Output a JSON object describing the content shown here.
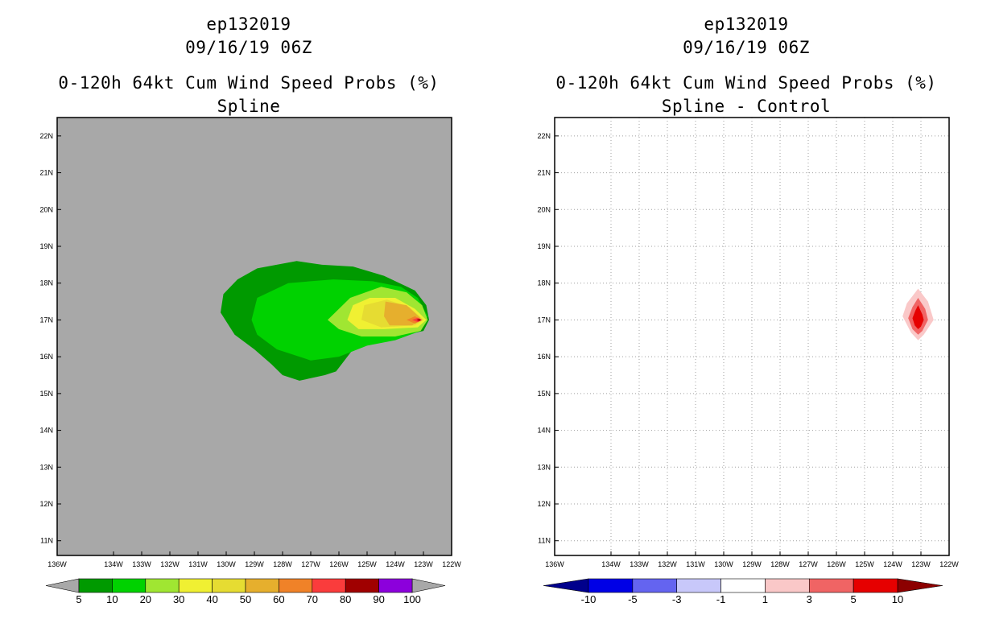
{
  "chart_data": [
    {
      "type": "heatmap",
      "storm_id": "ep132019",
      "datetime": "09/16/19 06Z",
      "title": "0-120h 64kt Cum Wind Speed Probs (%)",
      "subtitle": "Spline",
      "xlim": [
        -136,
        -122
      ],
      "ylim": [
        10.6,
        22.5
      ],
      "x_ticks": [
        "136W",
        "134W",
        "133W",
        "132W",
        "131W",
        "130W",
        "129W",
        "128W",
        "127W",
        "126W",
        "125W",
        "124W",
        "123W",
        "122W"
      ],
      "y_ticks": [
        "22N",
        "21N",
        "20N",
        "19N",
        "18N",
        "17N",
        "16N",
        "15N",
        "14N",
        "13N",
        "12N",
        "11N"
      ],
      "background_color": "#a8a8a8",
      "grid": false,
      "peak": {
        "lon": -123.1,
        "lat": 17.0
      },
      "contour_levels": [
        5,
        10,
        20,
        30,
        40,
        50,
        60,
        70,
        80,
        90,
        100
      ],
      "colorbar": {
        "labels": [
          "5",
          "10",
          "20",
          "30",
          "40",
          "50",
          "60",
          "70",
          "80",
          "90",
          "100"
        ],
        "colors": [
          "#009a00",
          "#00d200",
          "#a0e632",
          "#f0f032",
          "#e6dc32",
          "#e6af2d",
          "#f08228",
          "#fa3c3c",
          "#a00000",
          "#8c00dc"
        ],
        "end_color": "#a8a8a8"
      },
      "regions": [
        {
          "level": 5,
          "color": "#009a00",
          "lonlat": [
            [
              -130.2,
              17.2
            ],
            [
              -130.1,
              17.7
            ],
            [
              -129.6,
              18.1
            ],
            [
              -128.9,
              18.4
            ],
            [
              -127.5,
              18.6
            ],
            [
              -126.6,
              18.5
            ],
            [
              -125.5,
              18.45
            ],
            [
              -124.4,
              18.2
            ],
            [
              -123.3,
              17.8
            ],
            [
              -122.9,
              17.4
            ],
            [
              -122.8,
              17.0
            ],
            [
              -123.0,
              16.7
            ],
            [
              -124.2,
              16.5
            ],
            [
              -125.5,
              16.2
            ],
            [
              -126.1,
              15.6
            ],
            [
              -126.5,
              15.5
            ],
            [
              -127.4,
              15.35
            ],
            [
              -128.0,
              15.5
            ],
            [
              -128.4,
              15.8
            ],
            [
              -129.0,
              16.2
            ],
            [
              -129.7,
              16.6
            ]
          ]
        },
        {
          "level": 10,
          "color": "#00d200",
          "lonlat": [
            [
              -129.1,
              17.0
            ],
            [
              -128.9,
              17.6
            ],
            [
              -127.8,
              18.0
            ],
            [
              -126.2,
              18.1
            ],
            [
              -124.8,
              18.05
            ],
            [
              -123.8,
              17.9
            ],
            [
              -123.2,
              17.6
            ],
            [
              -122.85,
              17.1
            ],
            [
              -123.1,
              16.7
            ],
            [
              -124.0,
              16.45
            ],
            [
              -125.0,
              16.3
            ],
            [
              -126.0,
              16.0
            ],
            [
              -127.0,
              15.9
            ],
            [
              -128.2,
              16.2
            ],
            [
              -128.9,
              16.6
            ]
          ]
        },
        {
          "level": 20,
          "color": "#a0e632",
          "lonlat": [
            [
              -126.4,
              17.0
            ],
            [
              -125.6,
              17.6
            ],
            [
              -124.5,
              17.9
            ],
            [
              -123.6,
              17.75
            ],
            [
              -123.05,
              17.4
            ],
            [
              -122.85,
              17.0
            ],
            [
              -123.1,
              16.7
            ],
            [
              -124.0,
              16.55
            ],
            [
              -125.2,
              16.55
            ],
            [
              -126.0,
              16.75
            ]
          ]
        },
        {
          "level": 30,
          "color": "#f0f032",
          "lonlat": [
            [
              -125.7,
              17.0
            ],
            [
              -125.5,
              17.4
            ],
            [
              -124.9,
              17.6
            ],
            [
              -124.0,
              17.6
            ],
            [
              -123.3,
              17.3
            ],
            [
              -122.9,
              17.0
            ],
            [
              -123.2,
              16.8
            ],
            [
              -124.4,
              16.75
            ],
            [
              -125.3,
              16.75
            ]
          ]
        },
        {
          "level": 40,
          "color": "#e6dc32",
          "lonlat": [
            [
              -125.2,
              17.0
            ],
            [
              -125.1,
              17.4
            ],
            [
              -124.3,
              17.55
            ],
            [
              -123.5,
              17.35
            ],
            [
              -123.0,
              17.0
            ],
            [
              -123.3,
              16.85
            ],
            [
              -124.5,
              16.8
            ]
          ]
        },
        {
          "level": 50,
          "color": "#e6af2d",
          "lonlat": [
            [
              -124.4,
              17.1
            ],
            [
              -124.35,
              17.5
            ],
            [
              -123.6,
              17.4
            ],
            [
              -123.1,
              17.05
            ],
            [
              -123.4,
              16.85
            ],
            [
              -124.2,
              16.85
            ]
          ]
        },
        {
          "level": 60,
          "color": "#f08228",
          "lonlat": [
            [
              -123.6,
              17.0
            ],
            [
              -123.3,
              17.1
            ],
            [
              -123.05,
              17.0
            ],
            [
              -123.3,
              16.9
            ]
          ]
        },
        {
          "level": 70,
          "color": "#fa3c3c",
          "lonlat": [
            [
              -123.4,
              17.0
            ],
            [
              -123.2,
              17.06
            ],
            [
              -123.05,
              17.0
            ],
            [
              -123.2,
              16.94
            ]
          ]
        },
        {
          "level": 80,
          "color": "#a00000",
          "lonlat": [
            [
              -123.25,
              17.0
            ],
            [
              -123.15,
              17.03
            ],
            [
              -123.08,
              17.0
            ],
            [
              -123.15,
              16.97
            ]
          ]
        }
      ]
    },
    {
      "type": "heatmap",
      "storm_id": "ep132019",
      "datetime": "09/16/19 06Z",
      "title": "0-120h 64kt Cum Wind Speed Probs (%)",
      "subtitle": "Spline - Control",
      "xlim": [
        -136,
        -122
      ],
      "ylim": [
        10.6,
        22.5
      ],
      "x_ticks": [
        "136W",
        "134W",
        "133W",
        "132W",
        "131W",
        "130W",
        "129W",
        "128W",
        "127W",
        "126W",
        "125W",
        "124W",
        "123W",
        "122W"
      ],
      "y_ticks": [
        "22N",
        "21N",
        "20N",
        "19N",
        "18N",
        "17N",
        "16N",
        "15N",
        "14N",
        "13N",
        "12N",
        "11N"
      ],
      "background_color": "#ffffff",
      "grid": true,
      "peak": {
        "lon": -123.1,
        "lat": 17.0
      },
      "contour_levels": [
        -10,
        -5,
        -3,
        -1,
        1,
        3,
        5,
        10
      ],
      "colorbar": {
        "labels": [
          "-10",
          "-5",
          "-3",
          "-1",
          "1",
          "3",
          "5",
          "10"
        ],
        "colors": [
          "#0000e6",
          "#6464f0",
          "#c8c8fa",
          "#ffffff",
          "#fac8c8",
          "#f06464",
          "#e60000"
        ],
        "left_end_color": "#00008c",
        "right_end_color": "#8c0000"
      },
      "regions": [
        {
          "level": 1,
          "color": "#fac8c8",
          "lonlat": [
            [
              -123.1,
              17.85
            ],
            [
              -122.75,
              17.5
            ],
            [
              -122.55,
              17.0
            ],
            [
              -122.9,
              16.6
            ],
            [
              -123.1,
              16.45
            ],
            [
              -123.35,
              16.65
            ],
            [
              -123.65,
              17.1
            ],
            [
              -123.5,
              17.45
            ]
          ]
        },
        {
          "level": 3,
          "color": "#f06464",
          "lonlat": [
            [
              -123.1,
              17.6
            ],
            [
              -122.85,
              17.3
            ],
            [
              -122.75,
              17.0
            ],
            [
              -122.95,
              16.7
            ],
            [
              -123.1,
              16.6
            ],
            [
              -123.3,
              16.75
            ],
            [
              -123.45,
              17.05
            ],
            [
              -123.3,
              17.35
            ]
          ]
        },
        {
          "level": 5,
          "color": "#e60000",
          "lonlat": [
            [
              -123.1,
              17.4
            ],
            [
              -122.95,
              17.15
            ],
            [
              -122.9,
              17.0
            ],
            [
              -123.0,
              16.82
            ],
            [
              -123.1,
              16.75
            ],
            [
              -123.22,
              16.85
            ],
            [
              -123.3,
              17.05
            ],
            [
              -123.2,
              17.25
            ]
          ]
        }
      ]
    }
  ]
}
